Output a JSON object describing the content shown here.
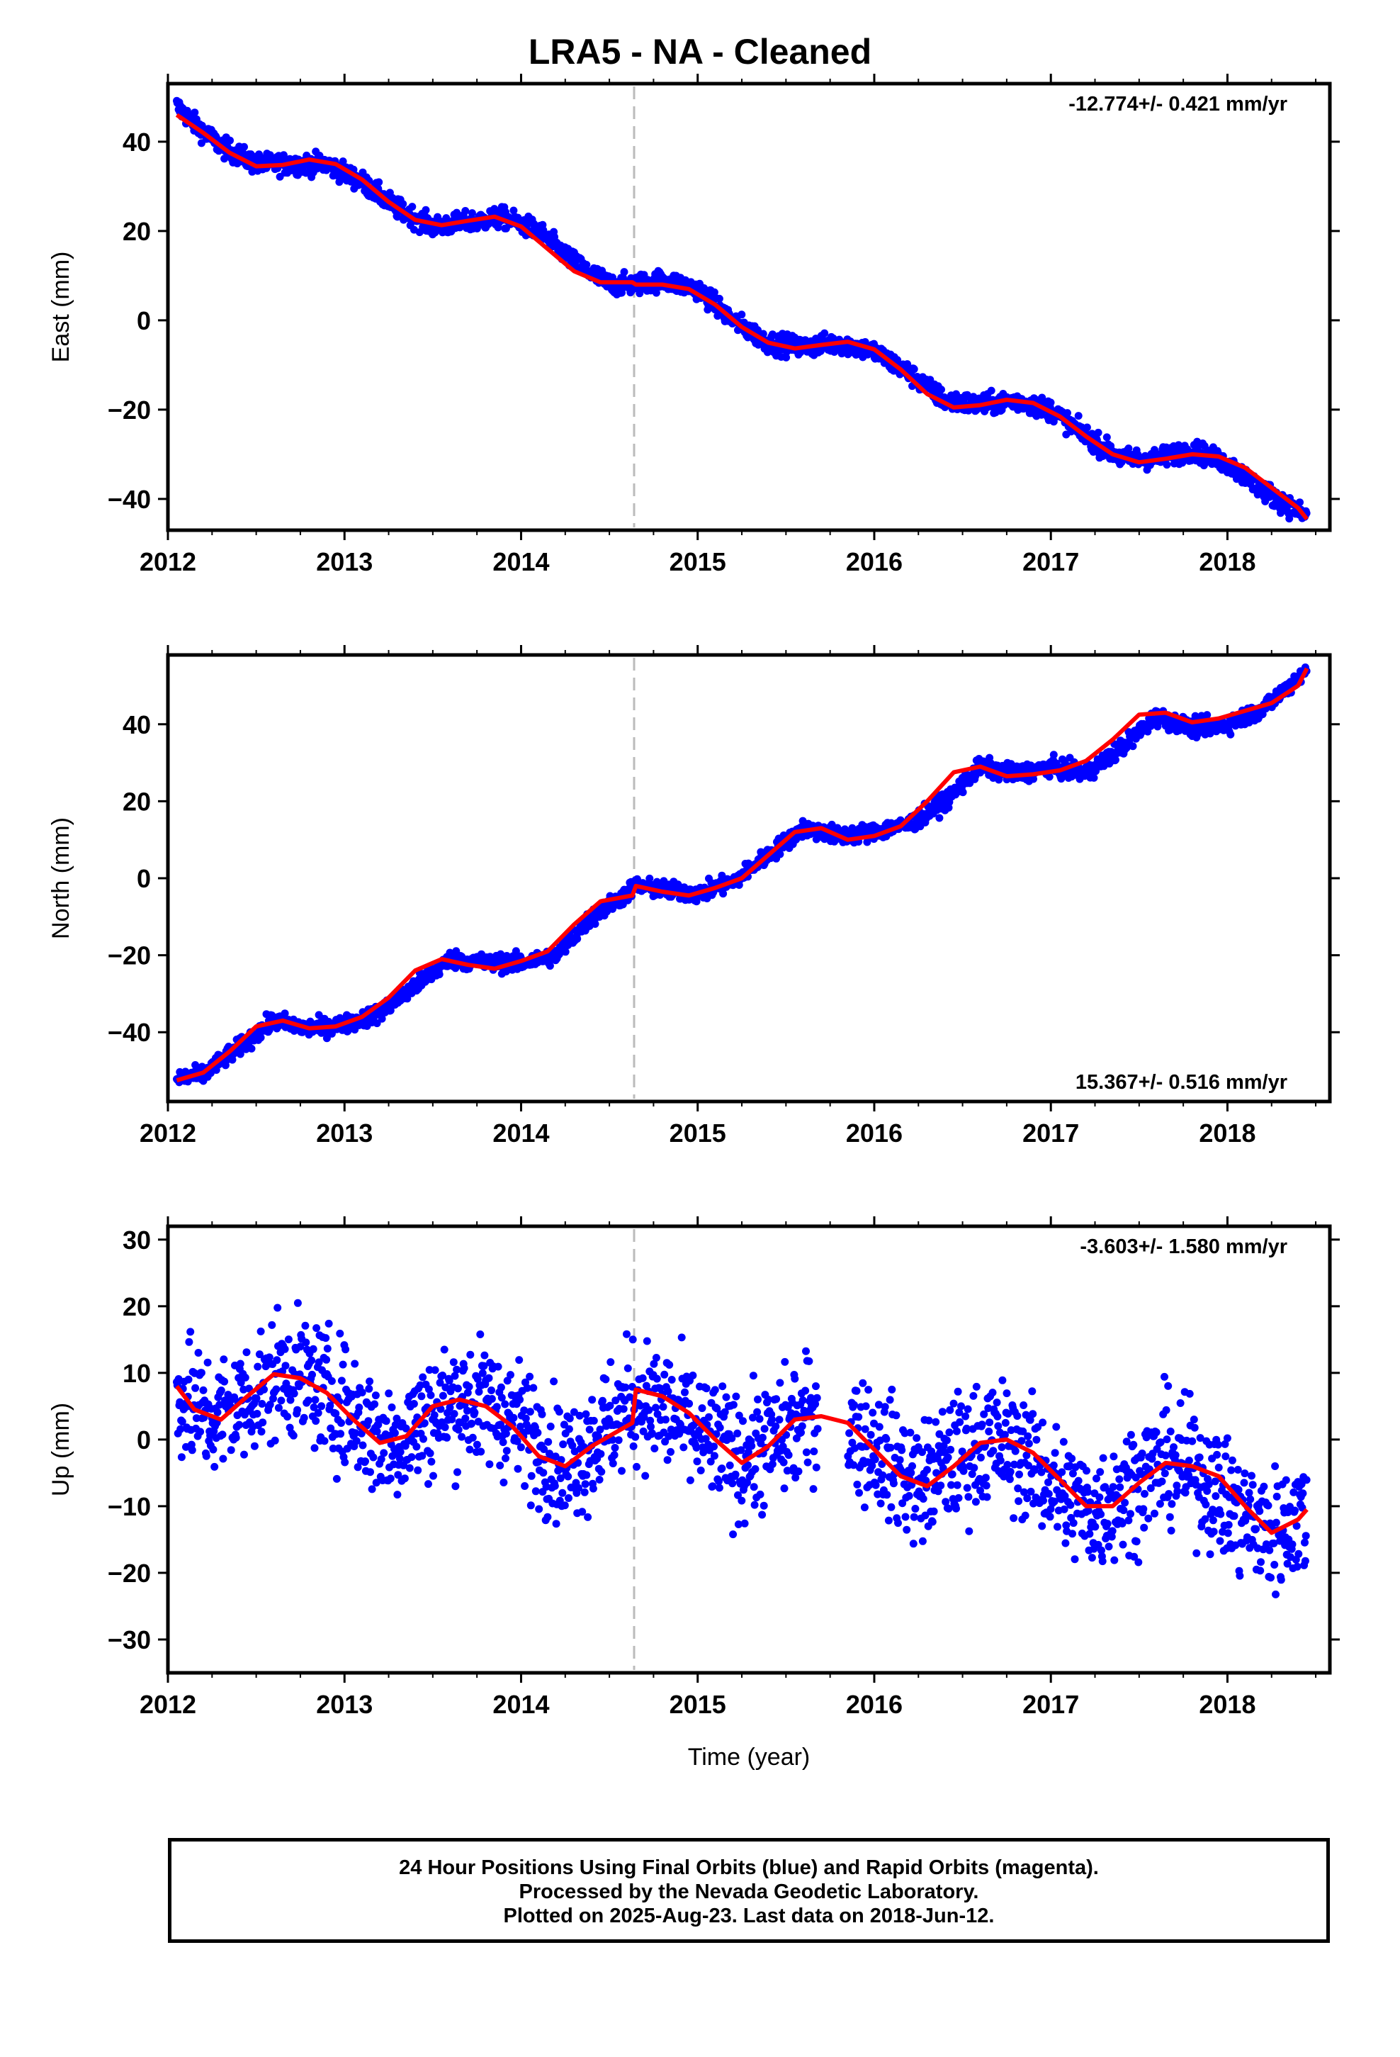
{
  "title": "LRA5  - NA - Cleaned",
  "chart_data": [
    {
      "type": "scatter",
      "ylabel": "East (mm)",
      "xlabel": "",
      "xlim": [
        2012.0,
        2018.58
      ],
      "ylim": [
        -47,
        53
      ],
      "xticks": [
        2012,
        2013,
        2014,
        2015,
        2016,
        2017,
        2018
      ],
      "yticks": [
        -40,
        -20,
        0,
        20,
        40
      ],
      "rate_label": "-12.774+/- 0.421 mm/yr",
      "rate_position": "top-right",
      "offset_marker_x": 2014.64,
      "scatter_spread": 1.6,
      "series": [
        {
          "values_note": "",
          "color": "#0000ff",
          "x": [
            2012.05,
            2012.15,
            2012.3,
            2012.5,
            2012.7,
            2012.9,
            2013.1,
            2013.3,
            2013.5,
            2013.7,
            2013.9,
            2014.1,
            2014.3,
            2014.5,
            2014.64,
            2014.8,
            2015.0,
            2015.2,
            2015.4,
            2015.6,
            2015.8,
            2016.0,
            2016.2,
            2016.4,
            2016.6,
            2016.8,
            2017.0,
            2017.2,
            2017.4,
            2017.6,
            2017.8,
            2018.0,
            2018.2,
            2018.45
          ],
          "y": [
            48,
            44,
            39,
            35,
            35,
            35,
            31,
            25,
            21,
            22,
            23,
            20,
            13,
            8,
            8,
            9,
            7,
            0,
            -5,
            -6,
            -5,
            -7,
            -12,
            -18,
            -19,
            -18,
            -20,
            -26,
            -31,
            -31,
            -29,
            -32,
            -38,
            -44
          ]
        }
      ],
      "fit": {
        "color": "#ff0000",
        "x": [
          2012.05,
          2012.2,
          2012.35,
          2012.5,
          2012.65,
          2012.8,
          2012.95,
          2013.1,
          2013.25,
          2013.4,
          2013.55,
          2013.7,
          2013.85,
          2014.0,
          2014.15,
          2014.3,
          2014.45,
          2014.63,
          2014.65,
          2014.8,
          2014.95,
          2015.1,
          2015.25,
          2015.4,
          2015.55,
          2015.7,
          2015.85,
          2016.0,
          2016.15,
          2016.3,
          2016.45,
          2016.6,
          2016.75,
          2016.9,
          2017.05,
          2017.2,
          2017.35,
          2017.5,
          2017.65,
          2017.8,
          2017.95,
          2018.1,
          2018.25,
          2018.4,
          2018.45
        ],
        "y": [
          46,
          42,
          37.5,
          34.5,
          34.8,
          36,
          35,
          31.5,
          26.5,
          22.5,
          21.3,
          22.3,
          23.2,
          21,
          16,
          11,
          8.5,
          8.5,
          8,
          8,
          7,
          3.5,
          -1.5,
          -5,
          -6.3,
          -5.5,
          -4.8,
          -6.5,
          -11,
          -16.5,
          -19.5,
          -19,
          -17.8,
          -18.5,
          -21.5,
          -26,
          -30,
          -31.8,
          -31,
          -30,
          -30.5,
          -33,
          -37.5,
          -42,
          -44.5
        ]
      }
    },
    {
      "type": "scatter",
      "ylabel": "North (mm)",
      "xlabel": "",
      "xlim": [
        2012.0,
        2018.58
      ],
      "ylim": [
        -58,
        58
      ],
      "xticks": [
        2012,
        2013,
        2014,
        2015,
        2016,
        2017,
        2018
      ],
      "yticks": [
        -40,
        -20,
        0,
        20,
        40
      ],
      "rate_label": "15.367+/- 0.516 mm/yr",
      "rate_position": "bottom-right",
      "offset_marker_x": 2014.64,
      "scatter_spread": 1.6,
      "series": [
        {
          "values_note": "",
          "color": "#0000ff",
          "x": [
            2012.05,
            2012.2,
            2012.4,
            2012.6,
            2012.8,
            2013.0,
            2013.2,
            2013.4,
            2013.6,
            2013.8,
            2014.0,
            2014.2,
            2014.4,
            2014.6,
            2014.64,
            2014.8,
            2015.0,
            2015.2,
            2015.4,
            2015.6,
            2015.8,
            2016.0,
            2016.2,
            2016.4,
            2016.6,
            2016.8,
            2017.0,
            2017.2,
            2017.4,
            2017.6,
            2017.8,
            2018.0,
            2018.2,
            2018.45
          ],
          "y": [
            -52,
            -51,
            -44,
            -37,
            -39,
            -38,
            -35,
            -28,
            -21,
            -22,
            -22,
            -20,
            -10,
            -4,
            -2,
            -3,
            -4,
            -1,
            6,
            13,
            11,
            12,
            14,
            20,
            29,
            27,
            29,
            27,
            34,
            42,
            39,
            40,
            44,
            54
          ]
        }
      ],
      "fit": {
        "color": "#ff0000",
        "x": [
          2012.05,
          2012.2,
          2012.35,
          2012.5,
          2012.65,
          2012.8,
          2012.95,
          2013.1,
          2013.25,
          2013.4,
          2013.55,
          2013.7,
          2013.85,
          2014.0,
          2014.15,
          2014.3,
          2014.45,
          2014.63,
          2014.65,
          2014.8,
          2014.95,
          2015.1,
          2015.25,
          2015.4,
          2015.55,
          2015.7,
          2015.85,
          2016.0,
          2016.15,
          2016.3,
          2016.45,
          2016.6,
          2016.75,
          2016.9,
          2017.05,
          2017.2,
          2017.35,
          2017.5,
          2017.65,
          2017.8,
          2017.95,
          2018.1,
          2018.25,
          2018.4,
          2018.45
        ],
        "y": [
          -52.5,
          -50.5,
          -45,
          -38.5,
          -37,
          -39,
          -38.5,
          -36,
          -31,
          -24,
          -21,
          -22.5,
          -23.5,
          -21.5,
          -19,
          -12,
          -6,
          -4.5,
          -2,
          -3.5,
          -4.5,
          -2.5,
          0,
          6,
          12,
          13,
          10,
          11,
          13.5,
          20,
          27.5,
          29,
          26.5,
          27,
          28,
          30.5,
          36,
          42.5,
          43,
          40.5,
          41.5,
          43.5,
          45.5,
          50,
          54.5
        ]
      }
    },
    {
      "type": "scatter",
      "ylabel": "Up (mm)",
      "xlabel": "Time (year)",
      "xlim": [
        2012.0,
        2018.58
      ],
      "ylim": [
        -35,
        32
      ],
      "xticks": [
        2012,
        2013,
        2014,
        2015,
        2016,
        2017,
        2018
      ],
      "yticks": [
        -30,
        -20,
        -10,
        0,
        10,
        20,
        30
      ],
      "rate_label": "-3.603+/- 1.580 mm/yr",
      "rate_position": "top-right",
      "offset_marker_x": 2014.64,
      "scatter_spread": 6.5,
      "series": [
        {
          "values_note": "",
          "color": "#0000ff",
          "x": [
            2012.05,
            2012.25,
            2012.45,
            2012.65,
            2012.85,
            2013.05,
            2013.25,
            2013.45,
            2013.65,
            2013.85,
            2014.05,
            2014.25,
            2014.45,
            2014.64,
            2014.85,
            2015.05,
            2015.25,
            2015.45,
            2015.65,
            2015.85,
            2016.05,
            2016.25,
            2016.45,
            2016.65,
            2016.85,
            2017.05,
            2017.25,
            2017.45,
            2017.65,
            2017.85,
            2018.05,
            2018.25,
            2018.45
          ],
          "y": [
            7,
            3,
            6,
            10,
            8,
            4,
            -1,
            3,
            6,
            5,
            1,
            -4,
            1,
            6,
            4,
            0,
            -3,
            0,
            4,
            2,
            -2,
            -7,
            -3,
            0,
            -2,
            -8,
            -11,
            -7,
            -3,
            -5,
            -11,
            -14,
            -11
          ]
        }
      ],
      "fit": {
        "color": "#ff0000",
        "x": [
          2012.05,
          2012.15,
          2012.3,
          2012.45,
          2012.6,
          2012.75,
          2012.9,
          2013.05,
          2013.2,
          2013.35,
          2013.5,
          2013.65,
          2013.8,
          2013.95,
          2014.1,
          2014.25,
          2014.4,
          2014.63,
          2014.65,
          2014.8,
          2014.95,
          2015.1,
          2015.25,
          2015.4,
          2015.55,
          2015.7,
          2015.85,
          2016.0,
          2016.15,
          2016.3,
          2016.45,
          2016.6,
          2016.75,
          2016.9,
          2017.05,
          2017.2,
          2017.35,
          2017.5,
          2017.65,
          2017.8,
          2017.95,
          2018.1,
          2018.25,
          2018.4,
          2018.45
        ],
        "y": [
          8,
          4.5,
          3,
          6.5,
          9.8,
          9.2,
          7,
          3,
          -0.5,
          0.5,
          5,
          6,
          5,
          2,
          -2.5,
          -4,
          -1,
          2.5,
          7.5,
          6.5,
          4,
          0,
          -3.5,
          -1,
          3,
          3.5,
          2.5,
          -1.5,
          -5.5,
          -7,
          -4,
          -0.5,
          0,
          -2,
          -6,
          -10,
          -10,
          -6.5,
          -3.5,
          -4,
          -5.5,
          -10,
          -14,
          -12,
          -10.5
        ]
      }
    }
  ],
  "footer": {
    "line1": "24 Hour Positions Using Final Orbits (blue) and Rapid Orbits (magenta).",
    "line2": "Processed by the Nevada Geodetic Laboratory.",
    "line3": "Plotted on 2025-Aug-23. Last data on 2018-Jun-12."
  },
  "colors": {
    "points": "#0000ff",
    "fit": "#ff0000",
    "offset_line": "#bbbbbb",
    "axes": "#000000"
  }
}
